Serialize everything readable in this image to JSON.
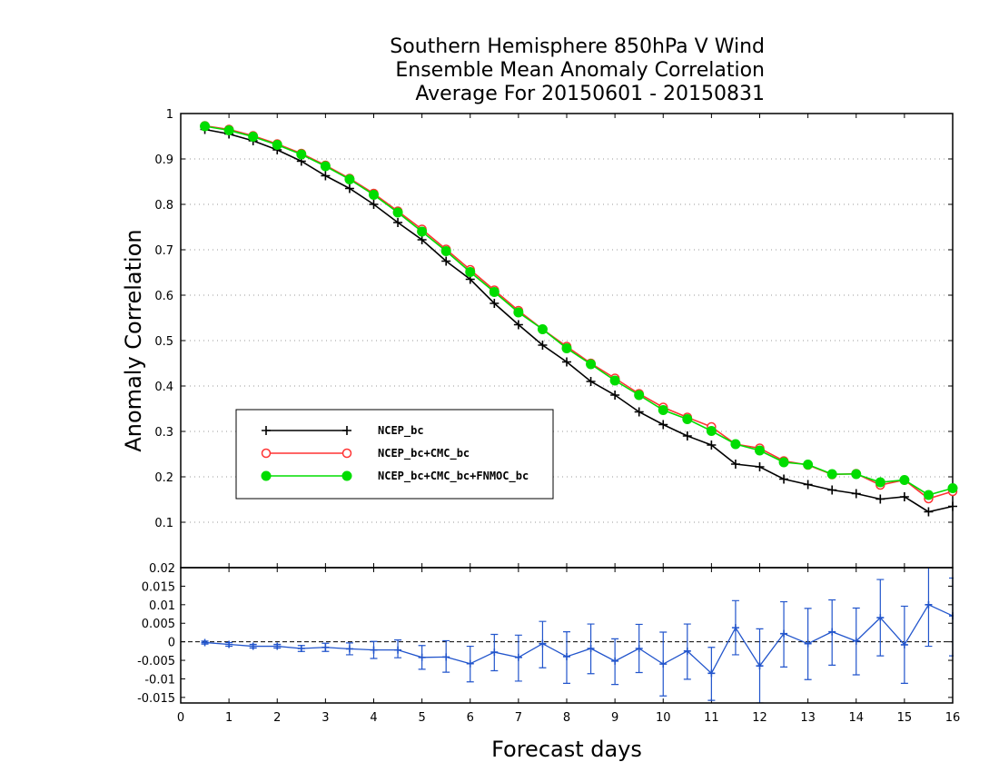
{
  "chart_data": [
    {
      "type": "line",
      "title": [
        "Southern Hemisphere 850hPa V Wind",
        "Ensemble Mean Anomaly Correlation",
        "Average For 20150601 - 20150831"
      ],
      "ylabel": "Anomaly Correlation",
      "xlabel": "Forecast days",
      "xlim": [
        0,
        16
      ],
      "ylim": [
        0,
        1
      ],
      "y_ticks": [
        "0.1",
        "0.2",
        "0.3",
        "0.4",
        "0.5",
        "0.6",
        "0.7",
        "0.8",
        "0.9",
        "1"
      ],
      "grid": "horizontal dotted",
      "legend_placement": "lower-left",
      "x": [
        0.5,
        1,
        1.5,
        2,
        2.5,
        3,
        3.5,
        4,
        4.5,
        5,
        5.5,
        6,
        6.5,
        7,
        7.5,
        8,
        8.5,
        9,
        9.5,
        10,
        10.5,
        11,
        11.5,
        12,
        12.5,
        13,
        13.5,
        14,
        14.5,
        15,
        15.5,
        16
      ],
      "series": [
        {
          "name": "NCEP_bc",
          "color": "#000000",
          "marker": "plus",
          "values": [
            0.965,
            0.955,
            0.94,
            0.92,
            0.895,
            0.863,
            0.835,
            0.8,
            0.76,
            0.722,
            0.675,
            0.635,
            0.582,
            0.535,
            0.49,
            0.453,
            0.41,
            0.38,
            0.343,
            0.315,
            0.29,
            0.27,
            0.228,
            0.222,
            0.195,
            0.183,
            0.171,
            0.163,
            0.151,
            0.156,
            0.123,
            0.135
          ]
        },
        {
          "name": "NCEP_bc+CMC_bc",
          "color": "#ff3333",
          "marker": "open-circle",
          "values": [
            0.973,
            0.965,
            0.951,
            0.933,
            0.912,
            0.886,
            0.857,
            0.824,
            0.785,
            0.745,
            0.701,
            0.656,
            0.611,
            0.566,
            0.525,
            0.487,
            0.45,
            0.417,
            0.383,
            0.353,
            0.331,
            0.31,
            0.272,
            0.263,
            0.235,
            0.226,
            0.205,
            0.207,
            0.182,
            0.193,
            0.152,
            0.168
          ]
        },
        {
          "name": "NCEP_bc+CMC_bc+FNMOC_bc",
          "color": "#00dd00",
          "marker": "filled-circle",
          "values": [
            0.972,
            0.963,
            0.949,
            0.931,
            0.91,
            0.884,
            0.855,
            0.821,
            0.782,
            0.74,
            0.697,
            0.651,
            0.607,
            0.562,
            0.525,
            0.483,
            0.448,
            0.412,
            0.38,
            0.347,
            0.327,
            0.301,
            0.272,
            0.258,
            0.232,
            0.227,
            0.206,
            0.206,
            0.188,
            0.193,
            0.16,
            0.175
          ]
        }
      ]
    },
    {
      "type": "line",
      "xlim": [
        0,
        16
      ],
      "ylim": [
        -0.0165,
        0.02
      ],
      "y_ticks": [
        "-0.015",
        "-0.01",
        "-0.005",
        "0",
        "0.005",
        "0.01",
        "0.015",
        "0.02"
      ],
      "x_ticks": [
        "0",
        "1",
        "2",
        "3",
        "4",
        "5",
        "6",
        "7",
        "8",
        "9",
        "10",
        "11",
        "12",
        "13",
        "14",
        "15",
        "16"
      ],
      "reference_line": 0,
      "series": [
        {
          "color": "#2255cc",
          "marker": "plus",
          "x": [
            0.5,
            1,
            1.5,
            2,
            2.5,
            3,
            3.5,
            4,
            4.5,
            5,
            5.5,
            6,
            6.5,
            7,
            7.5,
            8,
            8.5,
            9,
            9.5,
            10,
            10.5,
            11,
            11.5,
            12,
            12.5,
            13,
            13.5,
            14,
            14.5,
            15,
            15.5,
            16
          ],
          "values": [
            -0.0002,
            -0.0007,
            -0.0012,
            -0.0012,
            -0.0018,
            -0.0015,
            -0.0019,
            -0.0022,
            -0.0022,
            -0.0042,
            -0.0041,
            -0.0059,
            -0.0028,
            -0.0042,
            -0.0005,
            -0.004,
            -0.0018,
            -0.0052,
            -0.0018,
            -0.006,
            -0.0025,
            -0.0085,
            0.0038,
            -0.0065,
            0.0022,
            -0.0005,
            0.0027,
            0.0002,
            0.0065,
            -0.0008,
            0.01,
            0.007
          ],
          "err_low": [
            -0.0006,
            -0.0012,
            -0.0017,
            -0.0017,
            -0.0026,
            -0.0026,
            -0.0035,
            -0.0045,
            -0.0043,
            -0.0074,
            -0.0082,
            -0.0108,
            -0.0078,
            -0.0106,
            -0.007,
            -0.0112,
            -0.0086,
            -0.0115,
            -0.0083,
            -0.0146,
            -0.0101,
            -0.0158,
            -0.0035,
            -0.0165,
            -0.0068,
            -0.0102,
            -0.0063,
            -0.0089,
            -0.0038,
            -0.0112,
            -0.0012,
            -0.0038
          ],
          "err_high": [
            0.0002,
            -0.0002,
            -0.0007,
            -0.0007,
            -0.001,
            -0.0004,
            -0.0003,
            0.0001,
            0.0005,
            -0.001,
            0.0003,
            -0.0012,
            0.002,
            0.0018,
            0.0055,
            0.0027,
            0.0048,
            0.0008,
            0.0047,
            0.0026,
            0.0048,
            -0.0015,
            0.0111,
            0.0035,
            0.0108,
            0.009,
            0.0113,
            0.0091,
            0.0168,
            0.0096,
            0.0215,
            0.0172
          ]
        }
      ]
    }
  ]
}
